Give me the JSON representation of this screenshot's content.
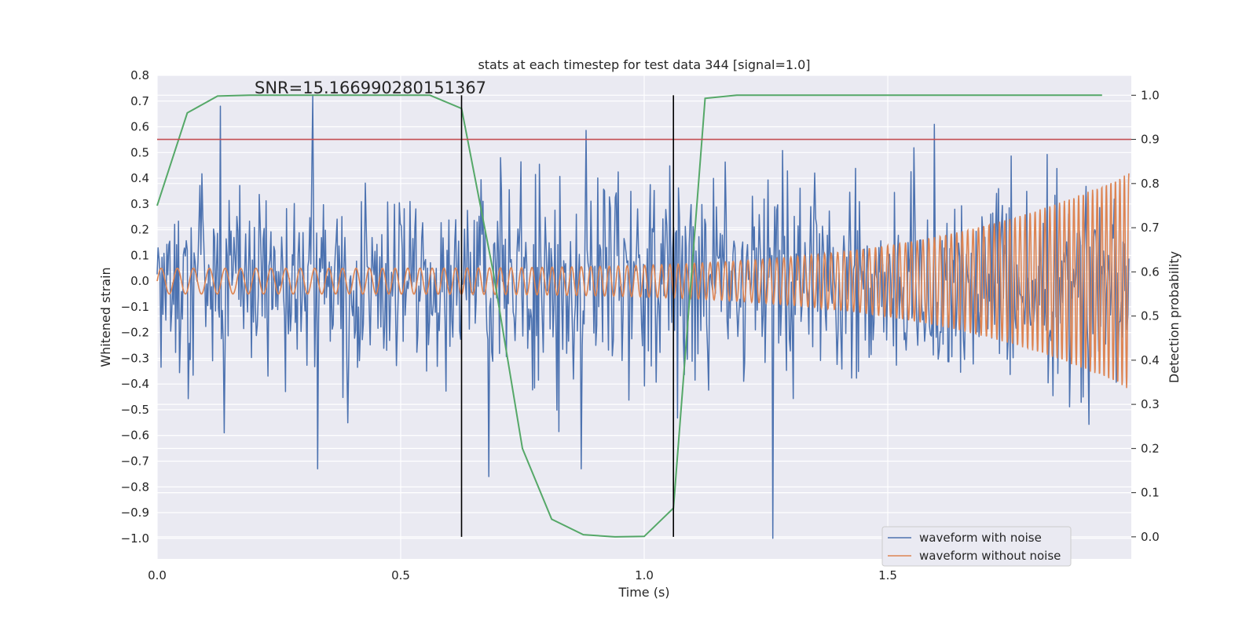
{
  "chart_data": {
    "type": "line",
    "title": "stats at each timestep for test data 344 [signal=1.0]",
    "xlabel": "Time (s)",
    "ylabel": "Whitened strain",
    "y2label": "Detection probability",
    "xlim": [
      0.0,
      2.0
    ],
    "ylim": [
      -1.08,
      0.8
    ],
    "y2lim": [
      -0.05,
      1.045
    ],
    "xticks": [
      0.0,
      0.5,
      1.0,
      1.5
    ],
    "xtick_labels": [
      "0.0",
      "0.5",
      "1.0",
      "1.5"
    ],
    "yticks": [
      -1.0,
      -0.9,
      -0.8,
      -0.7,
      -0.6,
      -0.5,
      -0.4,
      -0.3,
      -0.2,
      -0.1,
      0.0,
      0.1,
      0.2,
      0.3,
      0.4,
      0.5,
      0.6,
      0.7,
      0.8
    ],
    "ytick_labels": [
      "−1.0",
      "−0.9",
      "−0.8",
      "−0.7",
      "−0.6",
      "−0.5",
      "−0.4",
      "−0.3",
      "−0.2",
      "−0.1",
      "0.0",
      "0.1",
      "0.2",
      "0.3",
      "0.4",
      "0.5",
      "0.6",
      "0.7",
      "0.8"
    ],
    "y2ticks": [
      0.0,
      0.1,
      0.2,
      0.3,
      0.4,
      0.5,
      0.6,
      0.7,
      0.8,
      0.9,
      1.0
    ],
    "y2tick_labels": [
      "0.0",
      "0.1",
      "0.2",
      "0.3",
      "0.4",
      "0.5",
      "0.6",
      "0.7",
      "0.8",
      "0.9",
      "1.0"
    ],
    "annotation": "SNR=15.166990280151367",
    "annotation_x": 0.2,
    "annotation_y": 0.73,
    "legend": {
      "placement": "lower-right",
      "entries": [
        "waveform with noise",
        "waveform without noise"
      ]
    },
    "colors": {
      "noisy": "#4c72b0",
      "clean": "#dd8452",
      "probability": "#55a868",
      "threshold": "#c44e52",
      "markers": "#000000",
      "axes_bg": "#eaeaf2",
      "grid": "#ffffff"
    },
    "noisy_waveform": {
      "name": "waveform with noise",
      "t_range": [
        0.0,
        1.995
      ],
      "samples": 1000,
      "amplitude_std": 0.2,
      "peaks": [
        {
          "t": 0.32,
          "v": 0.72
        },
        {
          "t": 0.13,
          "v": 0.68
        },
        {
          "t": 0.33,
          "v": -0.73
        },
        {
          "t": 0.68,
          "v": -0.76
        },
        {
          "t": 1.265,
          "v": -1.0
        },
        {
          "t": 0.87,
          "v": -0.73
        }
      ]
    },
    "clean_waveform": {
      "name": "waveform without noise",
      "type": "chirp",
      "start_amplitude": 0.05,
      "end_amplitude": 0.42,
      "start_frequency_hz": 30,
      "end_frequency_hz": 110
    },
    "detection_probability": {
      "name": "detection probability",
      "axis": "right",
      "x": [
        0.0,
        0.062,
        0.124,
        0.19,
        0.25,
        0.31,
        0.375,
        0.44,
        0.5,
        0.56,
        0.625,
        0.69,
        0.75,
        0.81,
        0.875,
        0.94,
        1.0,
        1.06,
        1.125,
        1.19,
        1.25,
        1.31,
        1.375,
        1.44,
        1.5,
        1.56,
        1.625,
        1.69,
        1.75,
        1.81,
        1.875,
        1.94
      ],
      "y": [
        0.75,
        0.96,
        0.998,
        1.0,
        1.0,
        1.0,
        1.0,
        1.0,
        1.0,
        1.0,
        0.97,
        0.6,
        0.2,
        0.04,
        0.005,
        0.0,
        0.001,
        0.065,
        0.993,
        1.0,
        1.0,
        1.0,
        1.0,
        1.0,
        1.0,
        1.0,
        1.0,
        1.0,
        1.0,
        1.0,
        1.0,
        1.0
      ]
    },
    "threshold": {
      "axis": "right",
      "y": 0.9
    },
    "vertical_markers": [
      {
        "x": 0.625,
        "y2_range": [
          0.0,
          1.0
        ]
      },
      {
        "x": 1.06,
        "y2_range": [
          0.0,
          1.0
        ]
      }
    ]
  }
}
